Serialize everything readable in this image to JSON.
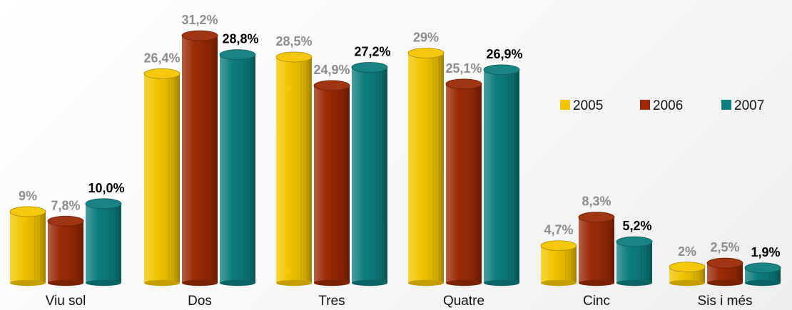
{
  "chart_data": {
    "type": "bar",
    "categories": [
      "Viu sol",
      "Dos",
      "Tres",
      "Quatre",
      "Cinc",
      "Sis i més"
    ],
    "series": [
      {
        "name": "2005",
        "color": "#f2c500",
        "values": [
          9,
          26.4,
          28.5,
          29,
          4.7,
          2
        ],
        "labels": [
          "9%",
          "26,4%",
          "28,5%",
          "29%",
          "4,7%",
          "2%"
        ],
        "label_color": "#8c8c8c"
      },
      {
        "name": "2006",
        "color": "#9a2a06",
        "values": [
          7.8,
          31.2,
          24.9,
          25.1,
          8.3,
          2.5
        ],
        "labels": [
          "7,8%",
          "31,2%",
          "24,9%",
          "25,1%",
          "8,3%",
          "2,5%"
        ],
        "label_color": "#8c8c8c"
      },
      {
        "name": "2007",
        "color": "#0e7d7d",
        "values": [
          10.0,
          28.8,
          27.2,
          26.9,
          5.2,
          1.9
        ],
        "labels": [
          "10,0%",
          "28,8%",
          "27,2%",
          "26,9%",
          "5,2%",
          "1,9%"
        ],
        "label_color": "#000000"
      }
    ],
    "ylim": [
      0,
      33
    ],
    "legend_position": "right",
    "grid": false
  }
}
